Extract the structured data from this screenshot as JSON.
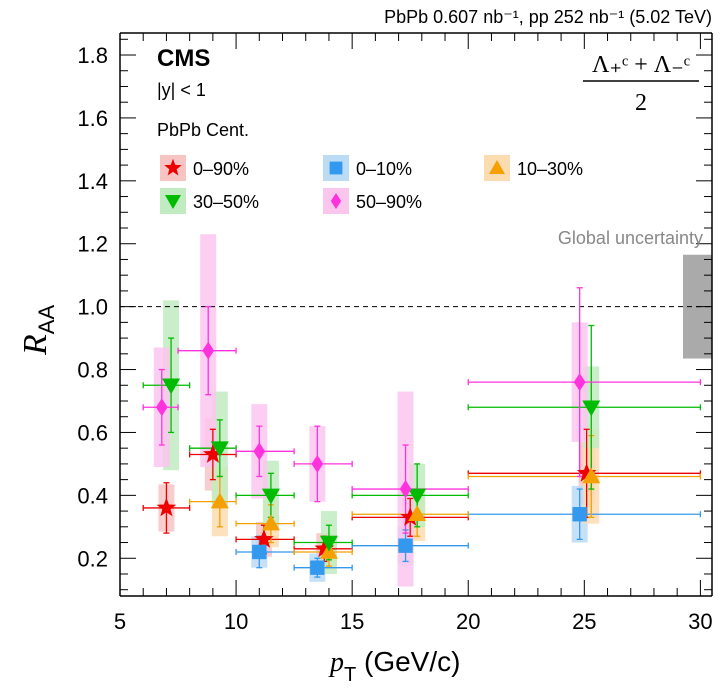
{
  "chart_data": {
    "type": "scatter",
    "header": "PbPb 0.607 nb⁻¹, pp 252 nb⁻¹ (5.02 TeV)",
    "experiment": "CMS",
    "rapidity_cut": "|y| < 1",
    "particle_label": {
      "numerator": "Λ₊ᶜ + Λ₋ᶜ",
      "denominator": "2"
    },
    "legend_title": "PbPb Cent.",
    "legend_placement": "top-left",
    "xlabel": "p_T (GeV/c)",
    "ylabel": "R_AA",
    "xlim": [
      5,
      30.5
    ],
    "ylim": [
      0.08,
      1.87
    ],
    "xticks": [
      5,
      10,
      15,
      20,
      25,
      30
    ],
    "yticks": [
      0.2,
      0.4,
      0.6,
      0.8,
      1.0,
      1.2,
      1.4,
      1.6,
      1.8
    ],
    "reference_line": 1.0,
    "global_uncertainty": {
      "label": "Global uncertainty",
      "low": 0.835,
      "high": 1.165,
      "color": "#aaaaaa"
    },
    "series": [
      {
        "name": "0–90%",
        "marker": "star",
        "color": "#ee0000",
        "box_color": "#f7c4c4",
        "points": [
          {
            "x": 7.0,
            "xlo": 6.0,
            "xhi": 8.0,
            "y": 0.36,
            "stat": 0.08,
            "syst": 0.075
          },
          {
            "x": 9.0,
            "xlo": 8.0,
            "xhi": 10.0,
            "y": 0.53,
            "stat": 0.08,
            "syst": 0.115
          },
          {
            "x": 11.2,
            "xlo": 10.0,
            "xhi": 12.5,
            "y": 0.26,
            "stat": 0.045,
            "syst": 0.055
          },
          {
            "x": 13.8,
            "xlo": 12.5,
            "xhi": 15.0,
            "y": 0.23,
            "stat": 0.04,
            "syst": 0.05
          },
          {
            "x": 17.5,
            "xlo": 15.0,
            "xhi": 20.0,
            "y": 0.33,
            "stat": 0.06,
            "syst": 0.07
          },
          {
            "x": 25.1,
            "xlo": 20.0,
            "xhi": 30.0,
            "y": 0.47,
            "stat": 0.14,
            "syst": 0.1
          }
        ]
      },
      {
        "name": "0–10%",
        "marker": "square",
        "color": "#3399ee",
        "box_color": "#bcdcf6",
        "points": [
          {
            "x": 11.0,
            "xlo": 10.0,
            "xhi": 12.5,
            "y": 0.22,
            "stat": 0.05,
            "syst": 0.05
          },
          {
            "x": 13.5,
            "xlo": 12.5,
            "xhi": 15.0,
            "y": 0.17,
            "stat": 0.03,
            "syst": 0.045
          },
          {
            "x": 17.3,
            "xlo": 15.0,
            "xhi": 20.0,
            "y": 0.24,
            "stat": 0.05,
            "syst": 0.06
          },
          {
            "x": 24.8,
            "xlo": 20.0,
            "xhi": 30.0,
            "y": 0.34,
            "stat": 0.08,
            "syst": 0.09
          }
        ]
      },
      {
        "name": "10–30%",
        "marker": "triangle-up",
        "color": "#f5a000",
        "box_color": "#fbdcb0",
        "points": [
          {
            "x": 9.3,
            "xlo": 8.0,
            "xhi": 10.0,
            "y": 0.38,
            "stat": 0.08,
            "syst": 0.11
          },
          {
            "x": 11.5,
            "xlo": 10.0,
            "xhi": 12.5,
            "y": 0.31,
            "stat": 0.06,
            "syst": 0.075
          },
          {
            "x": 14.0,
            "xlo": 12.5,
            "xhi": 15.0,
            "y": 0.22,
            "stat": 0.045,
            "syst": 0.055
          },
          {
            "x": 17.8,
            "xlo": 15.0,
            "xhi": 20.0,
            "y": 0.34,
            "stat": 0.07,
            "syst": 0.085
          },
          {
            "x": 25.3,
            "xlo": 20.0,
            "xhi": 30.0,
            "y": 0.46,
            "stat": 0.13,
            "syst": 0.15
          }
        ]
      },
      {
        "name": "30–50%",
        "marker": "triangle-down",
        "color": "#00bb00",
        "box_color": "#c1ebc1",
        "points": [
          {
            "x": 7.2,
            "xlo": 6.0,
            "xhi": 8.0,
            "y": 0.75,
            "stat": 0.15,
            "syst": 0.27
          },
          {
            "x": 9.3,
            "xlo": 8.0,
            "xhi": 10.0,
            "y": 0.55,
            "stat": 0.09,
            "syst": 0.18
          },
          {
            "x": 11.5,
            "xlo": 10.0,
            "xhi": 12.5,
            "y": 0.4,
            "stat": 0.07,
            "syst": 0.11
          },
          {
            "x": 14.0,
            "xlo": 12.5,
            "xhi": 15.0,
            "y": 0.25,
            "stat": 0.055,
            "syst": 0.1
          },
          {
            "x": 17.8,
            "xlo": 15.0,
            "xhi": 20.0,
            "y": 0.4,
            "stat": 0.1,
            "syst": 0.1
          },
          {
            "x": 25.3,
            "xlo": 20.0,
            "xhi": 30.0,
            "y": 0.68,
            "stat": 0.26,
            "syst": 0.13
          }
        ]
      },
      {
        "name": "50–90%",
        "marker": "diamond",
        "color": "#ff33dd",
        "box_color": "#fbc6ee",
        "points": [
          {
            "x": 6.8,
            "xlo": 6.0,
            "xhi": 7.5,
            "y": 0.68,
            "stat": 0.12,
            "syst": 0.19
          },
          {
            "x": 8.8,
            "xlo": 7.5,
            "xhi": 10.0,
            "y": 0.86,
            "stat": 0.14,
            "syst": 0.37
          },
          {
            "x": 11.0,
            "xlo": 10.0,
            "xhi": 12.5,
            "y": 0.54,
            "stat": 0.08,
            "syst": 0.15
          },
          {
            "x": 13.5,
            "xlo": 12.5,
            "xhi": 15.0,
            "y": 0.5,
            "stat": 0.12,
            "syst": 0.12
          },
          {
            "x": 17.3,
            "xlo": 15.0,
            "xhi": 20.0,
            "y": 0.42,
            "stat": 0.14,
            "syst": 0.31
          },
          {
            "x": 24.8,
            "xlo": 20.0,
            "xhi": 30.0,
            "y": 0.76,
            "stat": 0.3,
            "syst": 0.19
          }
        ]
      }
    ]
  }
}
